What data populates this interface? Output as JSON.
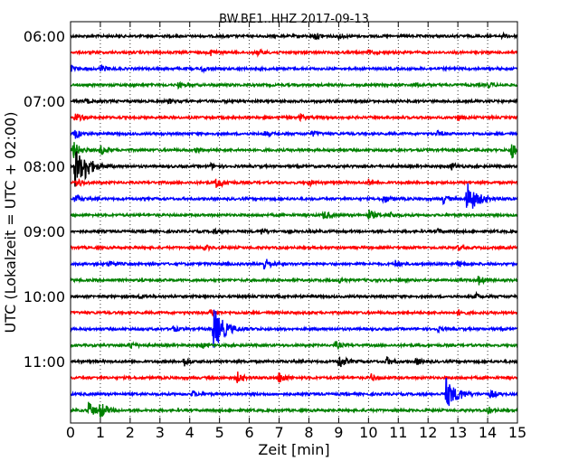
{
  "chart_data": {
    "type": "line",
    "title": "BW.BE1..HHZ 2017-09-13",
    "xlabel": "Zeit  [min]",
    "ylabel": "UTC (Lokalzeit = UTC + 02:00)",
    "xlim": [
      0,
      15
    ],
    "x_ticks": [
      "0",
      "1",
      "2",
      "3",
      "4",
      "5",
      "6",
      "7",
      "8",
      "9",
      "10",
      "11",
      "12",
      "13",
      "14",
      "15"
    ],
    "y_ticks": [
      {
        "label": "06:00",
        "trace": 0
      },
      {
        "label": "07:00",
        "trace": 4
      },
      {
        "label": "08:00",
        "trace": 8
      },
      {
        "label": "09:00",
        "trace": 12
      },
      {
        "label": "10:00",
        "trace": 16
      },
      {
        "label": "11:00",
        "trace": 20
      }
    ],
    "grid": "vertical dotted",
    "trace_minutes": 15,
    "trace_colors": [
      "#000000",
      "#ff0000",
      "#0000ff",
      "#008000"
    ],
    "traces": [
      {
        "start": "06:00",
        "events": [
          {
            "t": 8.2,
            "a": 0.4
          },
          {
            "t": 9.0,
            "a": 0.3
          },
          {
            "t": 14.5,
            "a": 0.25
          }
        ]
      },
      {
        "start": "06:15",
        "events": [
          {
            "t": 4.7,
            "a": 0.35
          },
          {
            "t": 6.3,
            "a": 0.35
          },
          {
            "t": 10.0,
            "a": 0.25
          }
        ]
      },
      {
        "start": "06:30",
        "events": [
          {
            "t": 0.0,
            "a": 0.35
          },
          {
            "t": 1.0,
            "a": 0.4
          },
          {
            "t": 4.4,
            "a": 0.35
          }
        ]
      },
      {
        "start": "06:45",
        "events": [
          {
            "t": 3.6,
            "a": 0.3
          },
          {
            "t": 11.6,
            "a": 0.25
          },
          {
            "t": 14.0,
            "a": 0.3
          }
        ]
      },
      {
        "start": "07:00",
        "events": [
          {
            "t": 0.5,
            "a": 0.3
          },
          {
            "t": 3.3,
            "a": 0.25
          }
        ]
      },
      {
        "start": "07:15",
        "events": [
          {
            "t": 0.15,
            "a": 0.55
          },
          {
            "t": 7.7,
            "a": 0.35
          },
          {
            "t": 13.0,
            "a": 0.3
          }
        ]
      },
      {
        "start": "07:30",
        "events": [
          {
            "t": 0.15,
            "a": 0.5
          },
          {
            "t": 6.5,
            "a": 0.3
          },
          {
            "t": 8.1,
            "a": 0.3
          },
          {
            "t": 12.3,
            "a": 0.3
          }
        ]
      },
      {
        "start": "07:45",
        "events": [
          {
            "t": 0.1,
            "a": 0.9
          },
          {
            "t": 1.0,
            "a": 0.5
          },
          {
            "t": 4.2,
            "a": 0.3
          },
          {
            "t": 14.8,
            "a": 1.0
          }
        ]
      },
      {
        "start": "08:00",
        "events": [
          {
            "t": 0.15,
            "a": 2.2
          },
          {
            "t": 0.5,
            "a": 0.8
          },
          {
            "t": 4.7,
            "a": 0.3
          },
          {
            "t": 12.8,
            "a": 0.4
          }
        ]
      },
      {
        "start": "08:15",
        "events": [
          {
            "t": 0.2,
            "a": 0.5
          },
          {
            "t": 4.9,
            "a": 0.7
          },
          {
            "t": 8.0,
            "a": 0.3
          },
          {
            "t": 10.0,
            "a": 0.3
          }
        ]
      },
      {
        "start": "08:30",
        "events": [
          {
            "t": 0.15,
            "a": 0.4
          },
          {
            "t": 10.5,
            "a": 0.5
          },
          {
            "t": 12.5,
            "a": 0.5
          },
          {
            "t": 13.3,
            "a": 2.0
          }
        ]
      },
      {
        "start": "08:45",
        "events": [
          {
            "t": 8.5,
            "a": 0.5
          },
          {
            "t": 10.0,
            "a": 0.6
          },
          {
            "t": 10.7,
            "a": 0.3
          }
        ]
      },
      {
        "start": "09:00",
        "events": [
          {
            "t": 4.8,
            "a": 0.3
          },
          {
            "t": 6.4,
            "a": 0.3
          },
          {
            "t": 12.3,
            "a": 0.25
          }
        ]
      },
      {
        "start": "09:15",
        "events": [
          {
            "t": 4.5,
            "a": 0.3
          },
          {
            "t": 13.0,
            "a": 0.25
          }
        ]
      },
      {
        "start": "09:30",
        "events": [
          {
            "t": 1.3,
            "a": 0.4
          },
          {
            "t": 6.5,
            "a": 0.7
          },
          {
            "t": 10.9,
            "a": 0.4
          },
          {
            "t": 13.0,
            "a": 0.35
          }
        ]
      },
      {
        "start": "09:45",
        "events": [
          {
            "t": 9.0,
            "a": 0.3
          },
          {
            "t": 13.7,
            "a": 0.5
          }
        ]
      },
      {
        "start": "10:00",
        "events": [
          {
            "t": 2.3,
            "a": 0.25
          },
          {
            "t": 13.6,
            "a": 0.3
          }
        ]
      },
      {
        "start": "10:15",
        "events": [
          {
            "t": 4.7,
            "a": 0.4
          },
          {
            "t": 13.0,
            "a": 0.3
          }
        ]
      },
      {
        "start": "10:30",
        "events": [
          {
            "t": 3.4,
            "a": 0.4
          },
          {
            "t": 4.8,
            "a": 2.4
          },
          {
            "t": 12.3,
            "a": 0.3
          }
        ]
      },
      {
        "start": "10:45",
        "events": [
          {
            "t": 2.0,
            "a": 0.4
          },
          {
            "t": 4.4,
            "a": 0.3
          },
          {
            "t": 8.9,
            "a": 0.4
          }
        ]
      },
      {
        "start": "11:00",
        "events": [
          {
            "t": 3.8,
            "a": 0.5
          },
          {
            "t": 9.0,
            "a": 0.8
          },
          {
            "t": 10.6,
            "a": 0.5
          },
          {
            "t": 11.6,
            "a": 0.4
          }
        ]
      },
      {
        "start": "11:15",
        "events": [
          {
            "t": 5.6,
            "a": 0.6
          },
          {
            "t": 7.0,
            "a": 0.7
          },
          {
            "t": 10.1,
            "a": 0.4
          }
        ]
      },
      {
        "start": "11:30",
        "events": [
          {
            "t": 4.1,
            "a": 0.3
          },
          {
            "t": 12.6,
            "a": 1.8
          },
          {
            "t": 13.0,
            "a": 0.4
          },
          {
            "t": 14.1,
            "a": 0.45
          }
        ]
      },
      {
        "start": "11:45",
        "events": [
          {
            "t": 0.6,
            "a": 0.9
          },
          {
            "t": 1.0,
            "a": 0.9
          },
          {
            "t": 14.0,
            "a": 0.4
          }
        ]
      }
    ]
  }
}
